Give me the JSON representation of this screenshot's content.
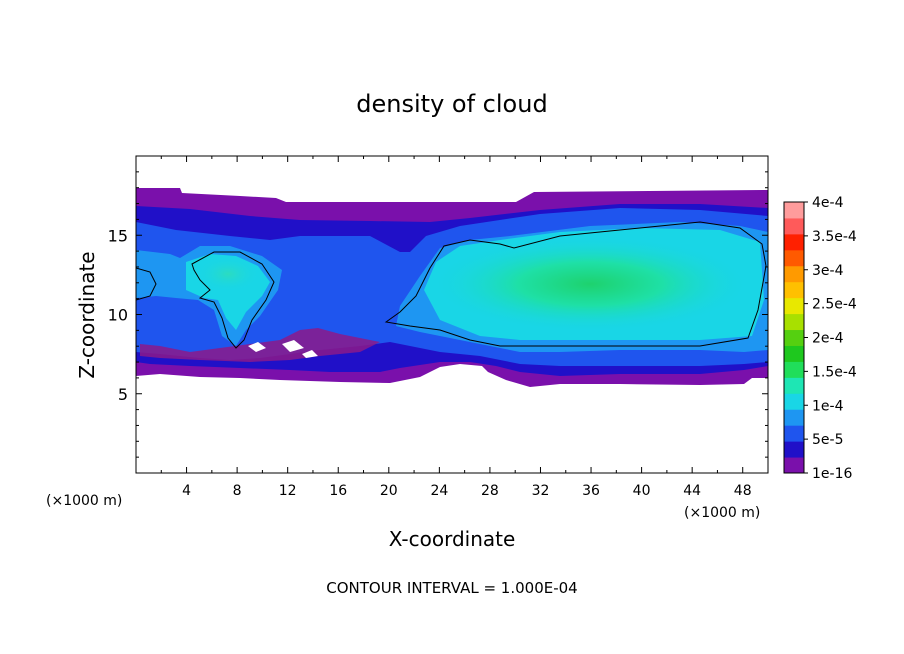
{
  "chart_data": {
    "type": "heatmap",
    "title": "density of cloud",
    "xlabel": "X-coordinate",
    "ylabel": "Z-coordinate",
    "x_unit": "(×1000 m)",
    "y_unit": "(×1000 m)",
    "xlim": [
      0,
      50
    ],
    "ylim": [
      0,
      20
    ],
    "x_ticks": [
      "4",
      "8",
      "12",
      "16",
      "20",
      "24",
      "28",
      "32",
      "36",
      "40",
      "44",
      "48"
    ],
    "y_ticks": [
      "5",
      "10",
      "15"
    ],
    "colorbar": {
      "labels": [
        "1e-16",
        "5e-5",
        "1e-4",
        "1.5e-4",
        "2e-4",
        "2.5e-4",
        "3e-4",
        "3.5e-4",
        "4e-4"
      ],
      "colors": [
        "#7a10ab",
        "#2010c8",
        "#1f55ee",
        "#1e96f2",
        "#19d6e6",
        "#1ee6b4",
        "#20de5a",
        "#1ec81e",
        "#55d010",
        "#a8e000",
        "#e8e800",
        "#ffc000",
        "#ff9a00",
        "#ff5a00",
        "#ff2000",
        "#ff5a5a",
        "#ff9c9c"
      ]
    },
    "cloud_envelope": {
      "top": [
        [
          0,
          17.8
        ],
        [
          5,
          17.6
        ],
        [
          11,
          17.0
        ],
        [
          16,
          17.0
        ],
        [
          20,
          17.0
        ],
        [
          24,
          17.0
        ],
        [
          31,
          17.8
        ],
        [
          50,
          17.8
        ]
      ],
      "base": [
        [
          0,
          6.2
        ],
        [
          8,
          6.0
        ],
        [
          16,
          6.0
        ],
        [
          22,
          6.5
        ],
        [
          27,
          6.2
        ],
        [
          30,
          5.9
        ],
        [
          42,
          5.9
        ],
        [
          50,
          6.0
        ]
      ]
    },
    "contour_interval_label": "CONTOUR INTERVAL = 1.000E-04"
  }
}
